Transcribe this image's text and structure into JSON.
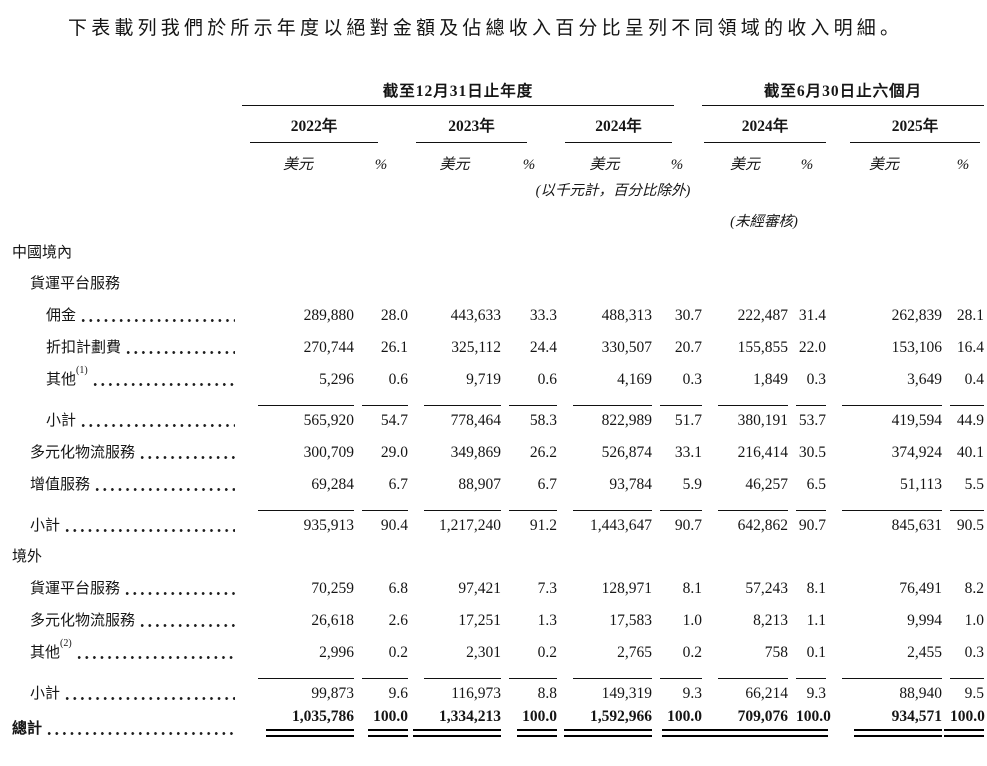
{
  "intro": {
    "text": "下表載列我們於所示年度以絕對金額及佔總收入百分比呈列不同領域的收入明細。"
  },
  "table": {
    "span_headers": [
      {
        "label": "截至12月31日止年度",
        "cols": 3
      },
      {
        "label": "截至6月30日止六個月",
        "cols": 2
      }
    ],
    "year_headers": [
      "2022年",
      "2023年",
      "2024年",
      "2024年",
      "2025年"
    ],
    "unit_headers": {
      "value": "美元",
      "pct": "%"
    },
    "note_units": "(以千元計，百分比除外)",
    "note_unaudited": "(未經審核)",
    "rows": [
      {
        "type": "section",
        "indent": 0,
        "label": "中國境內"
      },
      {
        "type": "section",
        "indent": 1,
        "label": "貨運平台服務"
      },
      {
        "type": "data",
        "indent": 2,
        "label": "佣金",
        "values": [
          [
            "289,880",
            "28.0"
          ],
          [
            "443,633",
            "33.3"
          ],
          [
            "488,313",
            "30.7"
          ],
          [
            "222,487",
            "31.4"
          ],
          [
            "262,839",
            "28.1"
          ]
        ]
      },
      {
        "type": "data",
        "indent": 2,
        "label": "折扣計劃費",
        "values": [
          [
            "270,744",
            "26.1"
          ],
          [
            "325,112",
            "24.4"
          ],
          [
            "330,507",
            "20.7"
          ],
          [
            "155,855",
            "22.0"
          ],
          [
            "153,106",
            "16.4"
          ]
        ]
      },
      {
        "type": "data",
        "indent": 2,
        "label": "其他",
        "sup": "(1)",
        "values": [
          [
            "5,296",
            "0.6"
          ],
          [
            "9,719",
            "0.6"
          ],
          [
            "4,169",
            "0.3"
          ],
          [
            "1,849",
            "0.3"
          ],
          [
            "3,649",
            "0.4"
          ]
        ]
      },
      {
        "type": "data",
        "indent": 2,
        "label": "小計",
        "rule_above": true,
        "values": [
          [
            "565,920",
            "54.7"
          ],
          [
            "778,464",
            "58.3"
          ],
          [
            "822,989",
            "51.7"
          ],
          [
            "380,191",
            "53.7"
          ],
          [
            "419,594",
            "44.9"
          ]
        ]
      },
      {
        "type": "data",
        "indent": 1,
        "label": "多元化物流服務",
        "values": [
          [
            "300,709",
            "29.0"
          ],
          [
            "349,869",
            "26.2"
          ],
          [
            "526,874",
            "33.1"
          ],
          [
            "216,414",
            "30.5"
          ],
          [
            "374,924",
            "40.1"
          ]
        ]
      },
      {
        "type": "data",
        "indent": 1,
        "label": "增值服務",
        "values": [
          [
            "69,284",
            "6.7"
          ],
          [
            "88,907",
            "6.7"
          ],
          [
            "93,784",
            "5.9"
          ],
          [
            "46,257",
            "6.5"
          ],
          [
            "51,113",
            "5.5"
          ]
        ]
      },
      {
        "type": "data",
        "indent": 1,
        "label": "小計",
        "rule_above": true,
        "values": [
          [
            "935,913",
            "90.4"
          ],
          [
            "1,217,240",
            "91.2"
          ],
          [
            "1,443,647",
            "90.7"
          ],
          [
            "642,862",
            "90.7"
          ],
          [
            "845,631",
            "90.5"
          ]
        ]
      },
      {
        "type": "section",
        "indent": 0,
        "label": "境外"
      },
      {
        "type": "data",
        "indent": 1,
        "label": "貨運平台服務",
        "values": [
          [
            "70,259",
            "6.8"
          ],
          [
            "97,421",
            "7.3"
          ],
          [
            "128,971",
            "8.1"
          ],
          [
            "57,243",
            "8.1"
          ],
          [
            "76,491",
            "8.2"
          ]
        ]
      },
      {
        "type": "data",
        "indent": 1,
        "label": "多元化物流服務",
        "values": [
          [
            "26,618",
            "2.6"
          ],
          [
            "17,251",
            "1.3"
          ],
          [
            "17,583",
            "1.0"
          ],
          [
            "8,213",
            "1.1"
          ],
          [
            "9,994",
            "1.0"
          ]
        ]
      },
      {
        "type": "data",
        "indent": 1,
        "label": "其他",
        "sup": "(2)",
        "values": [
          [
            "2,996",
            "0.2"
          ],
          [
            "2,301",
            "0.2"
          ],
          [
            "2,765",
            "0.2"
          ],
          [
            "758",
            "0.1"
          ],
          [
            "2,455",
            "0.3"
          ]
        ]
      },
      {
        "type": "data",
        "indent": 1,
        "label": "小計",
        "rule_above": true,
        "values": [
          [
            "99,873",
            "9.6"
          ],
          [
            "116,973",
            "8.8"
          ],
          [
            "149,319",
            "9.3"
          ],
          [
            "66,214",
            "9.3"
          ],
          [
            "88,940",
            "9.5"
          ]
        ]
      },
      {
        "type": "data",
        "indent": 0,
        "label": "總計",
        "bold": true,
        "double_rule_below": true,
        "values": [
          [
            "1,035,786",
            "100.0"
          ],
          [
            "1,334,213",
            "100.0"
          ],
          [
            "1,592,966",
            "100.0"
          ],
          [
            "709,076",
            "100.0"
          ],
          [
            "934,571",
            "100.0"
          ]
        ]
      }
    ]
  }
}
